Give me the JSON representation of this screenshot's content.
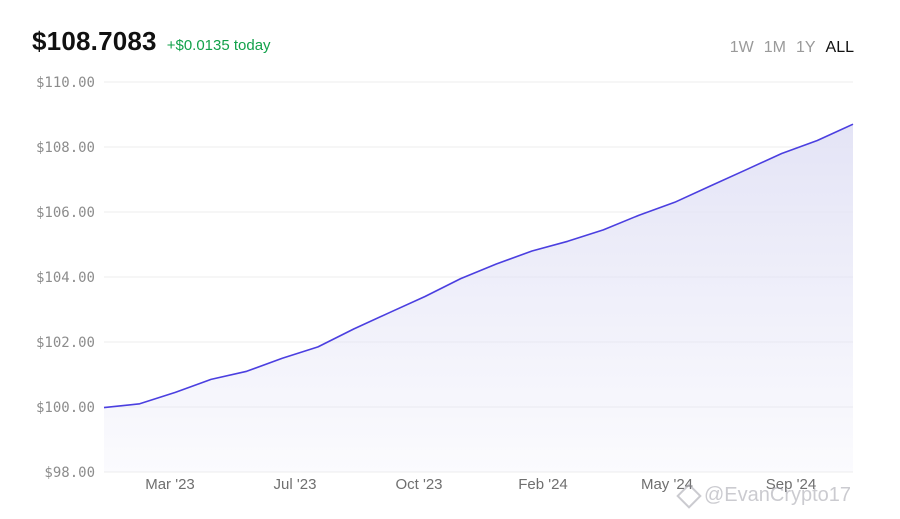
{
  "header": {
    "price": "$108.7083",
    "change": "+$0.0135 today"
  },
  "ranges": [
    {
      "label": "1W",
      "active": false
    },
    {
      "label": "1M",
      "active": false
    },
    {
      "label": "1Y",
      "active": false
    },
    {
      "label": "ALL",
      "active": true
    }
  ],
  "watermark": "@EvanCrypto17",
  "colors": {
    "line": "#4b3fe0",
    "area": "#e4e4f6",
    "change": "#12a14a"
  },
  "chart_data": {
    "type": "area",
    "title": "",
    "xlabel": "",
    "ylabel": "",
    "ylim": [
      98.0,
      110.0
    ],
    "y_ticks": [
      "$110.00",
      "$108.00",
      "$106.00",
      "$104.00",
      "$102.00",
      "$100.00",
      "$98.00"
    ],
    "x_ticks": [
      "Mar '23",
      "Jul '23",
      "Oct '23",
      "Feb '24",
      "May '24",
      "Sep '24"
    ],
    "grid": true,
    "series": [
      {
        "x": [
          "Jan '23",
          "Feb '23",
          "Mar '23",
          "Apr '23",
          "May '23",
          "Jun '23",
          "Jul '23",
          "Aug '23",
          "Sep '23",
          "Oct '23",
          "Nov '23",
          "Dec '23",
          "Jan '24",
          "Feb '24",
          "Mar '24",
          "Apr '24",
          "May '24",
          "Jun '24",
          "Jul '24",
          "Aug '24",
          "Sep '24",
          "Oct '24"
        ],
        "values": [
          99.98,
          100.1,
          100.45,
          100.85,
          101.1,
          101.5,
          101.85,
          102.4,
          102.9,
          103.4,
          103.95,
          104.4,
          104.8,
          105.1,
          105.45,
          105.9,
          106.3,
          106.8,
          107.3,
          107.8,
          108.2,
          108.7
        ]
      }
    ]
  }
}
